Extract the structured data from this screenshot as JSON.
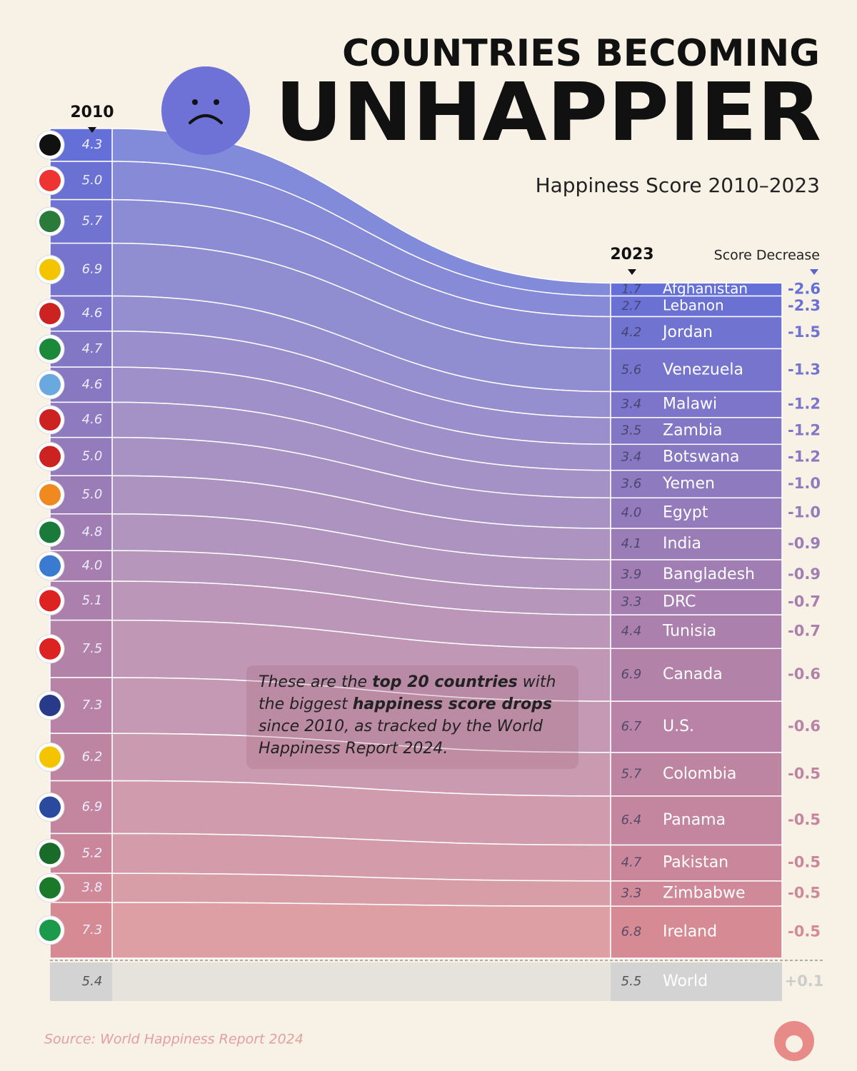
{
  "chart_data": {
    "type": "slope",
    "title": "COUNTRIES BECOMING",
    "title_emphasis": "UNHAPPIER",
    "subtitle": "Happiness Score 2010–2023",
    "change_label": "Score Decrease",
    "categories": [
      "Afghanistan",
      "Lebanon",
      "Jordan",
      "Venezuela",
      "Malawi",
      "Zambia",
      "Botswana",
      "Yemen",
      "Egypt",
      "India",
      "Bangladesh",
      "DRC",
      "Tunisia",
      "Canada",
      "U.S.",
      "Colombia",
      "Panama",
      "Pakistan",
      "Zimbabwe",
      "Ireland"
    ],
    "series": [
      {
        "name": "2010",
        "values": [
          4.3,
          5.0,
          5.7,
          6.9,
          4.6,
          4.7,
          4.6,
          4.6,
          5.0,
          5.0,
          4.8,
          4.0,
          5.1,
          7.5,
          7.3,
          6.2,
          6.9,
          5.2,
          3.8,
          7.3
        ],
        "value_labels": [
          "4.3",
          "5.0",
          "5.7",
          "6.9",
          "4.6",
          "4.7",
          "4.6",
          "4.6",
          "5.0",
          "5.0",
          "4.8",
          "4.0",
          "5.1",
          "7.5",
          "7.3",
          "6.2",
          "6.9",
          "5.2",
          "3.8",
          "7.3"
        ]
      },
      {
        "name": "2023",
        "values": [
          1.7,
          2.7,
          4.2,
          5.6,
          3.4,
          3.5,
          3.4,
          3.6,
          4.0,
          4.1,
          3.9,
          3.3,
          4.4,
          6.9,
          6.7,
          5.7,
          6.4,
          4.7,
          3.3,
          6.8
        ],
        "value_labels": [
          "1.7",
          "2.7",
          "4.2",
          "5.6",
          "3.4",
          "3.5",
          "3.4",
          "3.6",
          "4.0",
          "4.1",
          "3.9",
          "3.3",
          "4.4",
          "6.9",
          "6.7",
          "5.7",
          "6.4",
          "4.7",
          "3.3",
          "6.8"
        ]
      }
    ],
    "change": {
      "values": [
        -2.6,
        -2.3,
        -1.5,
        -1.3,
        -1.2,
        -1.2,
        -1.2,
        -1.0,
        -1.0,
        -0.9,
        -0.9,
        -0.7,
        -0.7,
        -0.6,
        -0.6,
        -0.5,
        -0.5,
        -0.5,
        -0.5,
        -0.5
      ],
      "value_labels": [
        "-2.6",
        "-2.3",
        "-1.5",
        "-1.3",
        "-1.2",
        "-1.2",
        "-1.2",
        "-1.0",
        "-1.0",
        "-0.9",
        "-0.9",
        "-0.7",
        "-0.7",
        "-0.6",
        "-0.6",
        "-0.5",
        "-0.5",
        "-0.5",
        "-0.5",
        "-0.5"
      ]
    },
    "total": {
      "category": "World",
      "start": 5.4,
      "end": 5.5,
      "change": 0.1,
      "change_label": "+0.1"
    },
    "annotation": [
      [
        {
          "text": "These are the ",
          "bold": false
        },
        {
          "text": "top 20 countries",
          "bold": true
        },
        {
          "text": " with",
          "bold": false
        }
      ],
      [
        {
          "text": "the biggest ",
          "bold": false
        },
        {
          "text": "happiness score drops",
          "bold": true
        }
      ],
      [
        {
          "text": "since 2010, as tracked by the World",
          "bold": false
        }
      ],
      [
        {
          "text": "Happiness Report 2024.",
          "bold": false
        }
      ]
    ],
    "source": "Source: World Happiness Report 2024"
  }
}
